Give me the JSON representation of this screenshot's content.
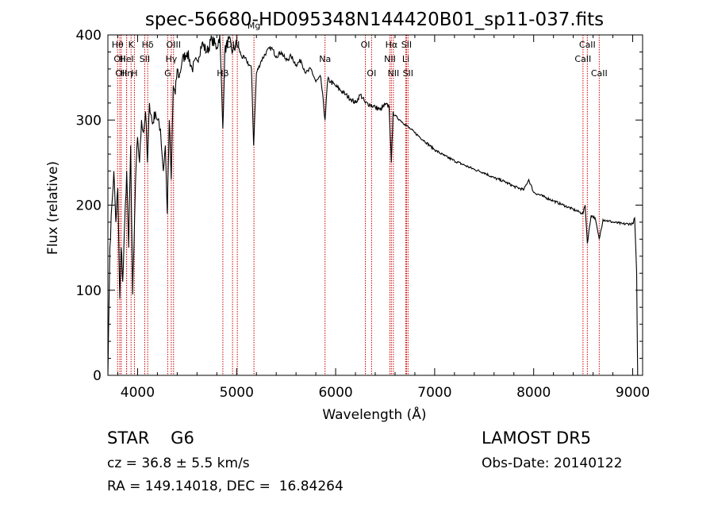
{
  "chart_data": {
    "type": "line",
    "title": "spec-56680-HD095348N144420B01_sp11-037.fits",
    "xlabel": "Wavelength (Å)",
    "ylabel": "Flux (relative)",
    "xlim": [
      3700,
      9100
    ],
    "ylim": [
      0,
      400
    ],
    "xticks": [
      4000,
      5000,
      6000,
      7000,
      8000,
      9000
    ],
    "yticks": [
      0,
      100,
      200,
      300,
      400
    ],
    "grid": false,
    "series": [
      {
        "x": [
          3700,
          3720,
          3740,
          3760,
          3780,
          3800,
          3820,
          3835,
          3850,
          3870,
          3890,
          3910,
          3930,
          3950,
          3965,
          3980,
          4000,
          4020,
          4040,
          4060,
          4080,
          4100,
          4120,
          4150,
          4180,
          4200,
          4230,
          4260,
          4280,
          4300,
          4320,
          4340,
          4360,
          4380,
          4400,
          4420,
          4450,
          4500,
          4550,
          4600,
          4650,
          4700,
          4750,
          4800,
          4830,
          4861,
          4880,
          4920,
          4960,
          5000,
          5050,
          5100,
          5150,
          5172,
          5200,
          5250,
          5300,
          5350,
          5400,
          5450,
          5500,
          5550,
          5600,
          5650,
          5700,
          5750,
          5800,
          5850,
          5893,
          5920,
          5950,
          6000,
          6050,
          6100,
          6150,
          6200,
          6250,
          6300,
          6350,
          6400,
          6450,
          6500,
          6540,
          6563,
          6580,
          6600,
          6650,
          6700,
          6750,
          6800,
          6900,
          7000,
          7100,
          7200,
          7300,
          7400,
          7500,
          7600,
          7700,
          7800,
          7900,
          7950,
          8000,
          8100,
          8200,
          8300,
          8400,
          8498,
          8520,
          8542,
          8580,
          8620,
          8662,
          8700,
          8800,
          8900,
          9000,
          9020,
          9040,
          9050
        ],
        "y": [
          0,
          150,
          200,
          240,
          180,
          220,
          90,
          150,
          110,
          180,
          240,
          150,
          270,
          95,
          160,
          230,
          280,
          250,
          300,
          285,
          310,
          250,
          320,
          295,
          310,
          300,
          290,
          240,
          270,
          190,
          300,
          230,
          340,
          330,
          360,
          350,
          370,
          380,
          360,
          370,
          390,
          380,
          395,
          385,
          400,
          290,
          380,
          395,
          380,
          390,
          375,
          370,
          360,
          270,
          355,
          370,
          380,
          385,
          375,
          380,
          370,
          375,
          365,
          370,
          355,
          360,
          345,
          350,
          300,
          348,
          345,
          340,
          335,
          330,
          325,
          320,
          330,
          320,
          318,
          315,
          312,
          318,
          316,
          250,
          310,
          305,
          300,
          295,
          290,
          285,
          275,
          265,
          258,
          252,
          247,
          242,
          238,
          232,
          228,
          222,
          218,
          230,
          215,
          210,
          205,
          200,
          195,
          190,
          200,
          155,
          188,
          185,
          160,
          183,
          180,
          178,
          178,
          185,
          120,
          0
        ]
      }
    ],
    "lines": [
      {
        "wl": 3798,
        "label": "Hθ",
        "row": 1
      },
      {
        "wl": 3820,
        "label": "OII",
        "row": 2
      },
      {
        "wl": 3835,
        "label": "OII",
        "row": 3
      },
      {
        "wl": 3889,
        "label": "HeI",
        "row": 2
      },
      {
        "wl": 3889,
        "label": "Hη",
        "row": 3
      },
      {
        "wl": 3934,
        "label": "K",
        "row": 1
      },
      {
        "wl": 3968,
        "label": "H",
        "row": 3
      },
      {
        "wl": 4072,
        "label": "SII",
        "row": 2
      },
      {
        "wl": 4102,
        "label": "Hδ",
        "row": 1
      },
      {
        "wl": 4304,
        "label": "G",
        "row": 3
      },
      {
        "wl": 4340,
        "label": "Hγ",
        "row": 2
      },
      {
        "wl": 4363,
        "label": "OIII",
        "row": 1
      },
      {
        "wl": 4861,
        "label": "Hβ",
        "row": 3
      },
      {
        "wl": 4959,
        "label": "OIII",
        "row": 1
      },
      {
        "wl": 5007,
        "label": "",
        "row": 1
      },
      {
        "wl": 5175,
        "label": "Mg",
        "row": 0
      },
      {
        "wl": 5893,
        "label": "Na",
        "row": 2
      },
      {
        "wl": 6300,
        "label": "OI",
        "row": 1
      },
      {
        "wl": 6363,
        "label": "OI",
        "row": 3
      },
      {
        "wl": 6548,
        "label": "NII",
        "row": 2
      },
      {
        "wl": 6563,
        "label": "Hα",
        "row": 1
      },
      {
        "wl": 6583,
        "label": "NII",
        "row": 3
      },
      {
        "wl": 6708,
        "label": "Li",
        "row": 2
      },
      {
        "wl": 6716,
        "label": "SII",
        "row": 1
      },
      {
        "wl": 6731,
        "label": "SII",
        "row": 3
      },
      {
        "wl": 8498,
        "label": "CaII",
        "row": 2
      },
      {
        "wl": 8542,
        "label": "CaII",
        "row": 1
      },
      {
        "wl": 8662,
        "label": "CaII",
        "row": 3
      }
    ],
    "colors": {
      "spectrum": "#000000",
      "line_markers": "#cc0000",
      "axes": "#000000"
    }
  },
  "info": {
    "class_line": "STAR    G6",
    "survey": "LAMOST DR5",
    "cz": "cz = 36.8 ± 5.5 km/s",
    "obs_date": "Obs-Date: 20140122",
    "radec": "RA = 149.14018, DEC =  16.84264"
  }
}
